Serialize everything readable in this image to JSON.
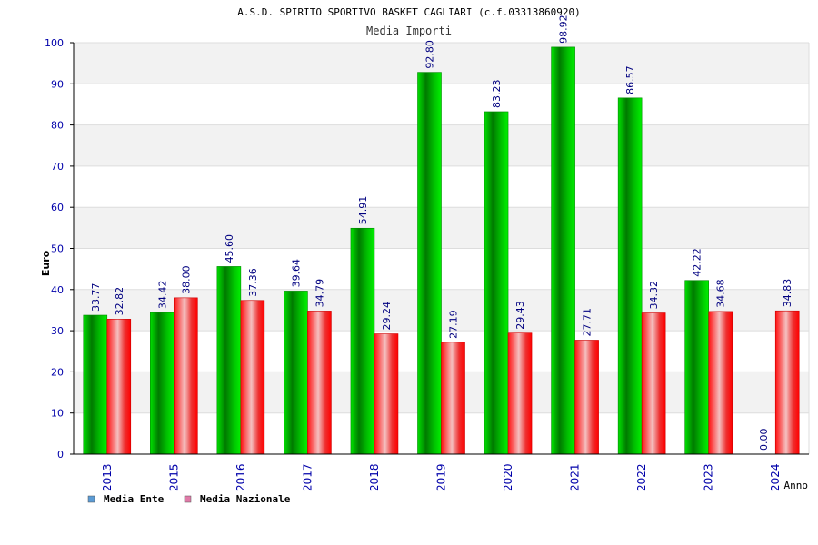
{
  "chart_data": {
    "type": "bar",
    "title": "A.S.D. SPIRITO SPORTIVO BASKET CAGLIARI (c.f.03313860920)",
    "subtitle": "Media Importi",
    "xlabel": "Anno",
    "ylabel": "Euro",
    "ylim": [
      0,
      100
    ],
    "yticks": [
      0,
      10,
      20,
      30,
      40,
      50,
      60,
      70,
      80,
      90,
      100
    ],
    "categories": [
      "2013",
      "2015",
      "2016",
      "2017",
      "2018",
      "2019",
      "2020",
      "2021",
      "2022",
      "2023",
      "2024"
    ],
    "series": [
      {
        "name": "Media Ente",
        "legend_color": "#5b9bd5",
        "values": [
          33.77,
          34.42,
          45.6,
          39.64,
          54.91,
          92.8,
          83.23,
          98.92,
          86.57,
          42.22,
          0.0
        ],
        "labels": [
          "33.77",
          "34.42",
          "45.60",
          "39.64",
          "54.91",
          "92.80",
          "83.23",
          "98.92",
          "86.57",
          "42.22",
          "0.00"
        ]
      },
      {
        "name": "Media Nazionale",
        "legend_color": "#e07aa8",
        "values": [
          32.82,
          38.0,
          37.36,
          34.79,
          29.24,
          27.19,
          29.43,
          27.71,
          34.32,
          34.68,
          34.83
        ],
        "labels": [
          "32.82",
          "38.00",
          "37.36",
          "34.79",
          "29.24",
          "27.19",
          "29.43",
          "27.71",
          "34.32",
          "34.68",
          "34.83"
        ]
      }
    ],
    "grid": true,
    "legend_position": "bottom-left"
  }
}
